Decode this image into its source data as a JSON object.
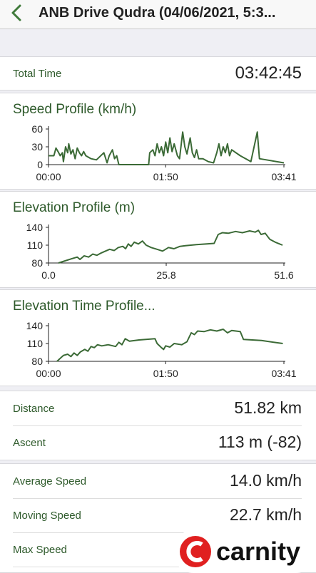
{
  "header": {
    "title": "ANB Drive Qudra (04/06/2021, 5:3..."
  },
  "total_time": {
    "label": "Total Time",
    "value": "03:42:45"
  },
  "charts": [
    {
      "type": "line",
      "title": "Speed Profile (km/h)",
      "color": "#3b6a36",
      "x": [
        0,
        5,
        7,
        9,
        11,
        13,
        14,
        16,
        18,
        19,
        21,
        23,
        25,
        27,
        29,
        31,
        33,
        35,
        40,
        45,
        52,
        55,
        57,
        60,
        62,
        64,
        66,
        75,
        85,
        94,
        95,
        98,
        100,
        102,
        104,
        106,
        108,
        110,
        112,
        114,
        116,
        118,
        121,
        123,
        126,
        128,
        130,
        133,
        135,
        137,
        139,
        141,
        145,
        150,
        155,
        158,
        160,
        162,
        164,
        166,
        168,
        170,
        172,
        180,
        190,
        196,
        198,
        221
      ],
      "values": [
        15,
        15,
        28,
        22,
        15,
        20,
        5,
        30,
        20,
        35,
        18,
        25,
        10,
        28,
        20,
        15,
        22,
        15,
        10,
        8,
        20,
        3,
        15,
        25,
        10,
        15,
        0,
        0,
        0,
        0,
        20,
        25,
        15,
        35,
        20,
        30,
        15,
        38,
        20,
        45,
        22,
        35,
        15,
        10,
        55,
        30,
        18,
        45,
        20,
        12,
        25,
        10,
        10,
        5,
        3,
        20,
        35,
        15,
        30,
        20,
        35,
        15,
        25,
        15,
        5,
        55,
        10,
        3
      ],
      "xlim": [
        0,
        221
      ],
      "ylim": [
        0,
        60
      ],
      "yticks": [
        0,
        30,
        60
      ],
      "xticks": [
        {
          "value": 0,
          "label": "00:00"
        },
        {
          "value": 110,
          "label": "01:50"
        },
        {
          "value": 221,
          "label": "03:41"
        }
      ]
    },
    {
      "type": "line",
      "title": "Elevation Profile (m)",
      "color": "#3b6a36",
      "x": [
        2.2,
        3.4,
        5,
        6.3,
        6.9,
        7.8,
        8.8,
        9.7,
        10.6,
        11.6,
        12.5,
        13.4,
        14.4,
        15.3,
        16.3,
        16.9,
        17.5,
        18.1,
        18.8,
        19.7,
        20.6,
        21.4,
        22.5,
        23.8,
        25,
        26.3,
        27.5,
        28.8,
        30,
        32.4,
        34.7,
        36.3,
        37.2,
        38.1,
        39.4,
        41,
        42.5,
        44.1,
        45.3,
        46,
        46.6,
        47.5,
        48.5,
        49.7,
        51.3
      ],
      "values": [
        80,
        83,
        87,
        90,
        86,
        92,
        90,
        95,
        93,
        97,
        100,
        103,
        101,
        106,
        108,
        104,
        112,
        108,
        115,
        112,
        117,
        110,
        106,
        103,
        100,
        106,
        104,
        108,
        109,
        111,
        112,
        113,
        128,
        131,
        130,
        133,
        131,
        134,
        132,
        135,
        128,
        130,
        120,
        115,
        110
      ],
      "xlim": [
        0,
        51.6
      ],
      "ylim": [
        80,
        140
      ],
      "yticks": [
        80,
        110,
        140
      ],
      "xticks": [
        {
          "value": 0,
          "label": "0.0"
        },
        25.8,
        51.6
      ]
    },
    {
      "type": "line",
      "title": "Elevation Time Profile...",
      "color": "#3b6a36",
      "x": [
        8,
        11,
        14,
        18,
        21,
        24,
        27,
        30,
        34,
        37,
        40,
        43,
        46,
        50,
        56,
        63,
        66,
        69,
        72,
        76,
        85,
        100,
        102,
        106,
        108,
        110,
        114,
        118,
        125,
        130,
        134,
        137,
        140,
        146,
        152,
        158,
        164,
        168,
        172,
        180,
        183,
        200,
        220
      ],
      "values": [
        80,
        85,
        90,
        92,
        88,
        94,
        90,
        96,
        100,
        97,
        105,
        103,
        108,
        106,
        108,
        105,
        112,
        108,
        118,
        114,
        116,
        118,
        110,
        103,
        100,
        106,
        104,
        110,
        108,
        113,
        128,
        125,
        131,
        130,
        133,
        131,
        134,
        128,
        132,
        130,
        117,
        115,
        110
      ],
      "xlim": [
        0,
        221
      ],
      "ylim": [
        80,
        140
      ],
      "yticks": [
        80,
        110,
        140
      ],
      "xticks": [
        {
          "value": 0,
          "label": "00:00"
        },
        {
          "value": 110,
          "label": "01:50"
        },
        {
          "value": 221,
          "label": "03:41"
        }
      ]
    }
  ],
  "stats": [
    [
      {
        "label": "Distance",
        "value": "51.82 km"
      },
      {
        "label": "Ascent",
        "value": "113 m (-82)"
      }
    ],
    [
      {
        "label": "Average Speed",
        "value": "14.0 km/h"
      },
      {
        "label": "Moving Speed",
        "value": "22.7 km/h"
      },
      {
        "label": "Max Speed"
      }
    ]
  ],
  "brand": "carnity"
}
